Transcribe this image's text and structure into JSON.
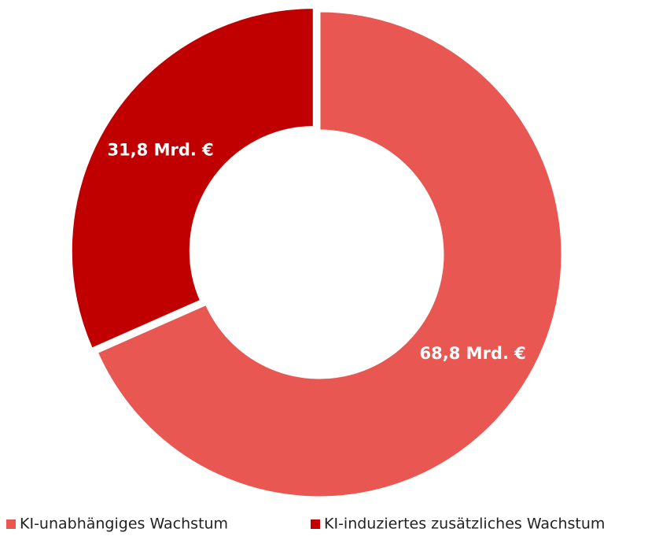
{
  "chart_data": {
    "type": "donut",
    "categories": [
      "KI-unabhängiges Wachstum",
      "KI-induziertes zusätzliches Wachstum"
    ],
    "values": [
      68.8,
      31.8
    ],
    "value_labels": [
      "68,8 Mrd. €",
      "31,8 Mrd. €"
    ],
    "colors": [
      "#e85752",
      "#c00000"
    ],
    "legend": "bottom"
  }
}
